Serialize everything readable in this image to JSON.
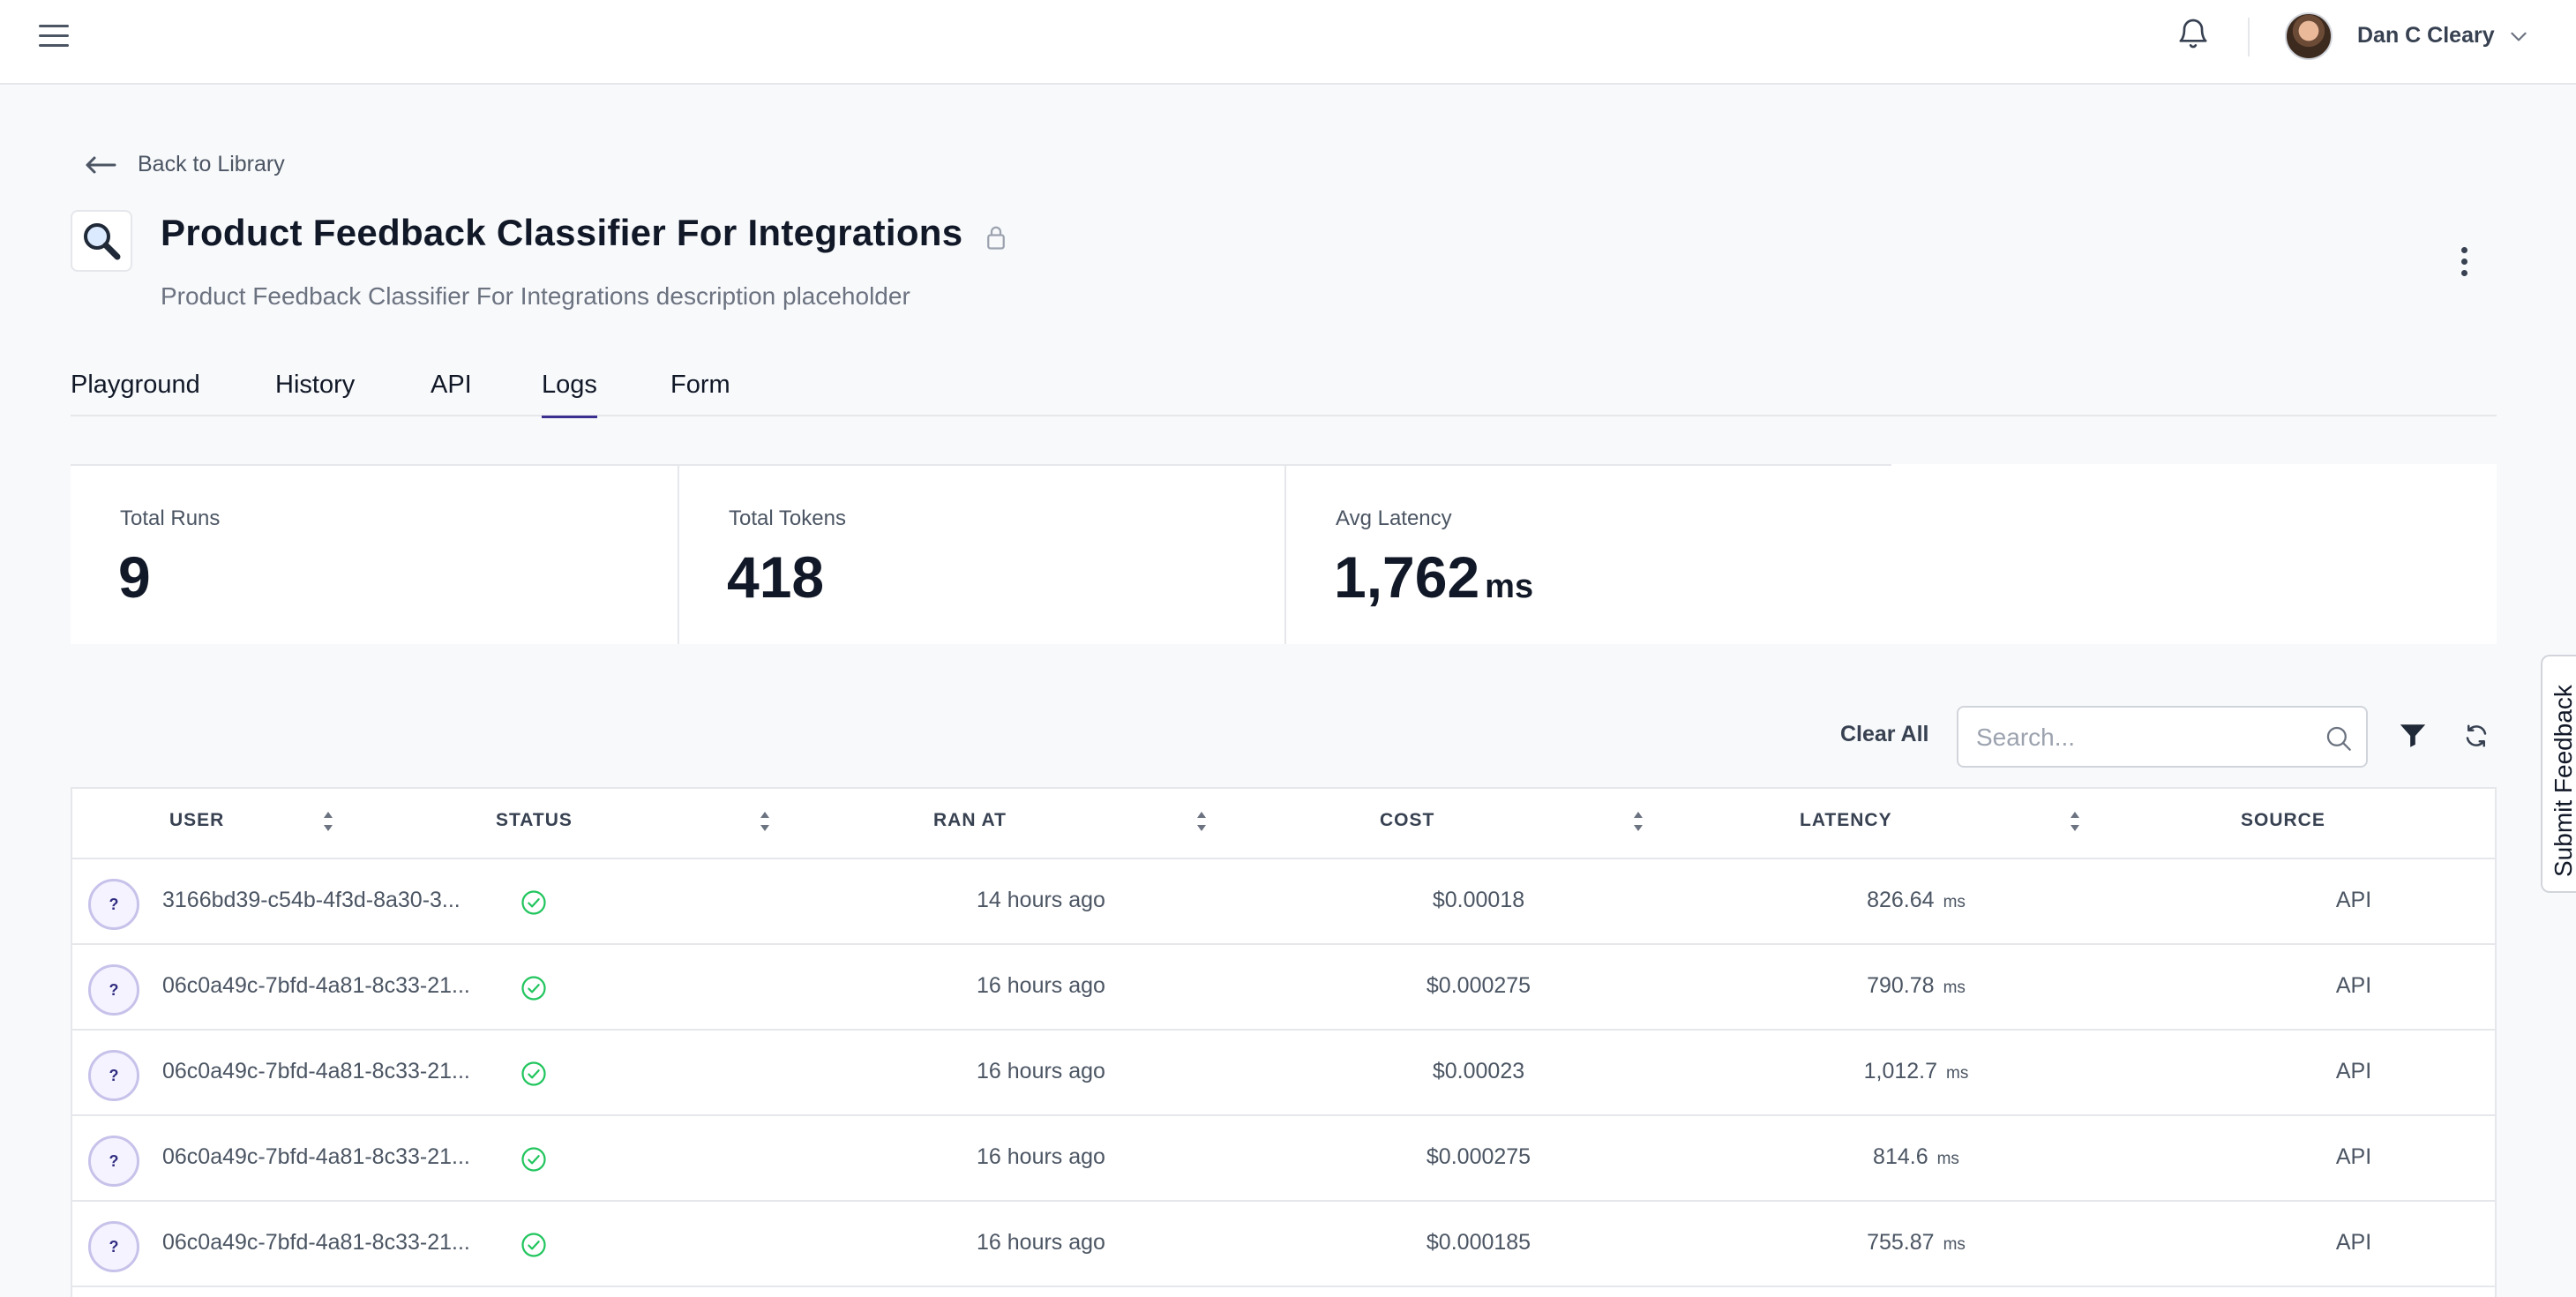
{
  "header": {
    "user_name": "Dan C Cleary"
  },
  "nav": {
    "back_label": "Back to Library"
  },
  "prompt": {
    "title": "Product Feedback Classifier For Integrations",
    "description": "Product Feedback Classifier For Integrations description placeholder"
  },
  "tabs": [
    {
      "label": "Playground"
    },
    {
      "label": "History"
    },
    {
      "label": "API"
    },
    {
      "label": "Logs",
      "active": true
    },
    {
      "label": "Form"
    }
  ],
  "stats": {
    "total_runs_label": "Total Runs",
    "total_runs_value": "9",
    "total_tokens_label": "Total Tokens",
    "total_tokens_value": "418",
    "avg_latency_label": "Avg Latency",
    "avg_latency_value": "1,762",
    "avg_latency_unit": "ms"
  },
  "toolbar": {
    "clear_all_label": "Clear All",
    "search_placeholder": "Search..."
  },
  "table": {
    "columns": {
      "user": "USER",
      "status": "STATUS",
      "ran_at": "RAN AT",
      "cost": "COST",
      "latency": "LATENCY",
      "source": "SOURCE"
    },
    "latency_unit": "ms",
    "avatar_glyph": "?",
    "rows": [
      {
        "user": "3166bd39-c54b-4f3d-8a30-3...",
        "ran_at": "14 hours ago",
        "cost": "$0.00018",
        "latency": "826.64",
        "source": "API"
      },
      {
        "user": "06c0a49c-7bfd-4a81-8c33-21...",
        "ran_at": "16 hours ago",
        "cost": "$0.000275",
        "latency": "790.78",
        "source": "API"
      },
      {
        "user": "06c0a49c-7bfd-4a81-8c33-21...",
        "ran_at": "16 hours ago",
        "cost": "$0.00023",
        "latency": "1,012.7",
        "source": "API"
      },
      {
        "user": "06c0a49c-7bfd-4a81-8c33-21...",
        "ran_at": "16 hours ago",
        "cost": "$0.000275",
        "latency": "814.6",
        "source": "API"
      },
      {
        "user": "06c0a49c-7bfd-4a81-8c33-21...",
        "ran_at": "16 hours ago",
        "cost": "$0.000185",
        "latency": "755.87",
        "source": "API"
      }
    ]
  },
  "feedback": {
    "label": "Submit Feedback"
  },
  "colors": {
    "tab_underline": "#3b2f8f",
    "status_success": "#22c55e",
    "avatar_ring": "#c7c2ea"
  },
  "icons": [
    "menu-icon",
    "bell-icon",
    "chevron-down-icon",
    "arrow-left-icon",
    "magnifier-icon",
    "lock-icon",
    "more-vertical-icon",
    "search-icon",
    "filter-icon",
    "refresh-icon",
    "sort-icon",
    "check-circle-icon"
  ]
}
